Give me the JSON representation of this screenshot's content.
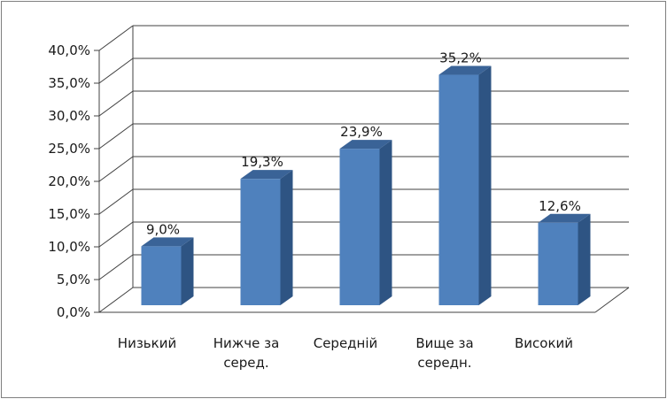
{
  "chart_data": {
    "type": "bar",
    "title": "",
    "xlabel": "",
    "ylabel": "",
    "categories": [
      [
        "Низький"
      ],
      [
        "Нижче за",
        "серед."
      ],
      [
        "Середній"
      ],
      [
        "Вище за",
        "середн."
      ],
      [
        "Високий"
      ]
    ],
    "values": [
      9.0,
      19.3,
      23.9,
      35.2,
      12.6
    ],
    "data_labels": [
      "9,0%",
      "19,3%",
      "23,9%",
      "35,2%",
      "12,6%"
    ],
    "yticks": [
      "0,0%",
      "5,0%",
      "10,0%",
      "15,0%",
      "20,0%",
      "25,0%",
      "30,0%",
      "35,0%",
      "40,0%"
    ],
    "ylim": [
      0,
      40
    ],
    "grid": true,
    "style": "3d-clustered-column",
    "legend": "none",
    "colors": {
      "bar_front": "#4f81bd",
      "bar_side": "#2e5483",
      "bar_top": "#3a6397",
      "grid": "#404040"
    }
  }
}
